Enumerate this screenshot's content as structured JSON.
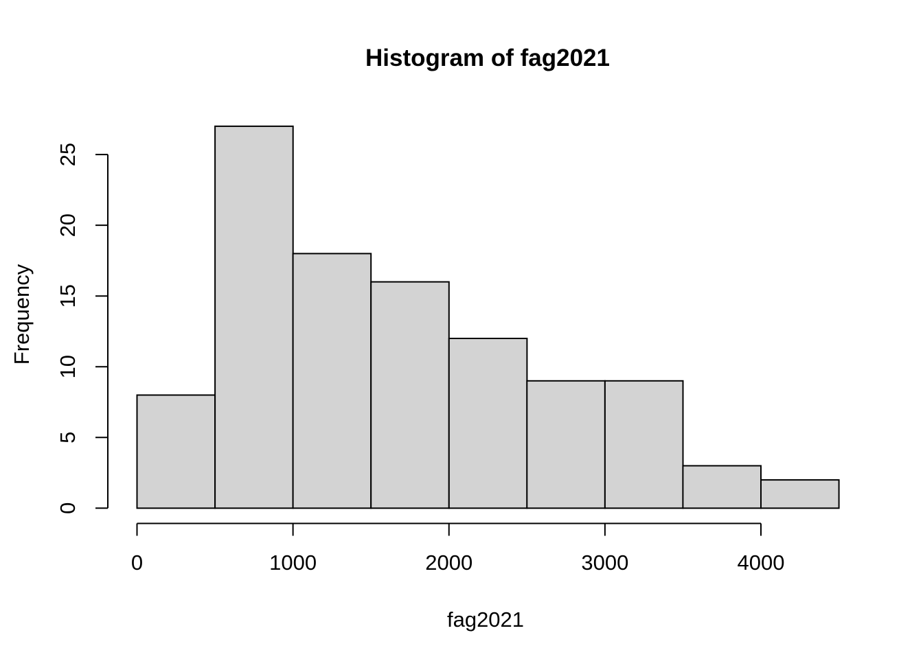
{
  "title": "Histogram of fag2021",
  "x_axis_label": "fag2021",
  "y_axis_label": "Frequency",
  "chart_data": {
    "type": "bar",
    "subtype": "histogram",
    "title": "Histogram of fag2021",
    "xlabel": "fag2021",
    "ylabel": "Frequency",
    "bin_edges": [
      0,
      500,
      1000,
      1500,
      2000,
      2500,
      3000,
      3500,
      4000,
      4500
    ],
    "counts": [
      8,
      27,
      18,
      16,
      12,
      9,
      9,
      3,
      2
    ],
    "x_tick_values": [
      0,
      1000,
      2000,
      3000,
      4000
    ],
    "x_tick_labels": [
      "0",
      "1000",
      "2000",
      "3000",
      "4000"
    ],
    "y_tick_values": [
      0,
      5,
      10,
      15,
      20,
      25
    ],
    "y_tick_labels": [
      "0",
      "5",
      "10",
      "15",
      "20",
      "25"
    ],
    "xlim": [
      0,
      4500
    ],
    "ylim": [
      0,
      27
    ],
    "grid": false,
    "legend": false,
    "bar_fill_color": "#d3d3d3",
    "bar_border_color": "#000000",
    "axis_color": "#000000",
    "text_color": "#000000",
    "background_color": "#ffffff"
  }
}
